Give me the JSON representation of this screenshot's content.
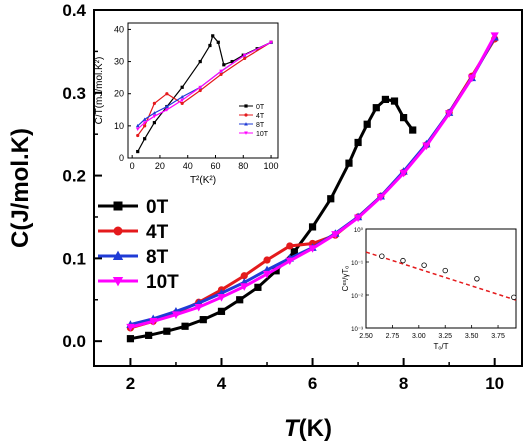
{
  "chart_data": [
    {
      "type": "line",
      "xlabel_main": "T",
      "xlabel_unit": "(K)",
      "ylabel": "C(J/mol.K)",
      "xlim": [
        1.2,
        10.6
      ],
      "ylim": [
        -0.03,
        0.4
      ],
      "xticks": [
        2,
        4,
        6,
        8,
        10
      ],
      "yticks": [
        0.0,
        0.1,
        0.2,
        0.3,
        0.4
      ],
      "ytick_labels": [
        "0.0",
        "0.1",
        "0.2",
        "0.3",
        "0.4"
      ],
      "legend_position": "middle-left",
      "series": [
        {
          "name": "0T",
          "color": "#000000",
          "marker": "square",
          "x": [
            2.0,
            2.4,
            2.8,
            3.2,
            3.6,
            4.0,
            4.4,
            4.8,
            5.2,
            5.6,
            6.0,
            6.4,
            6.8,
            7.0,
            7.2,
            7.4,
            7.6,
            7.8,
            8.0,
            8.2
          ],
          "y": [
            0.003,
            0.007,
            0.012,
            0.018,
            0.026,
            0.036,
            0.05,
            0.065,
            0.085,
            0.108,
            0.138,
            0.172,
            0.215,
            0.24,
            0.262,
            0.282,
            0.292,
            0.29,
            0.27,
            0.255
          ]
        },
        {
          "name": "4T",
          "color": "#e41a1c",
          "marker": "circle",
          "x": [
            2.0,
            2.5,
            3.0,
            3.5,
            4.0,
            4.5,
            5.0,
            5.5,
            6.0,
            6.5,
            7.0,
            7.5,
            8.0,
            8.5,
            9.0,
            9.5,
            10.0
          ],
          "y": [
            0.016,
            0.024,
            0.034,
            0.047,
            0.062,
            0.079,
            0.098,
            0.115,
            0.118,
            0.128,
            0.15,
            0.175,
            0.204,
            0.237,
            0.276,
            0.32,
            0.365
          ]
        },
        {
          "name": "8T",
          "color": "#1f3bd6",
          "marker": "triangle-up",
          "x": [
            2.0,
            2.5,
            3.0,
            3.5,
            4.0,
            4.5,
            5.0,
            5.5,
            6.0,
            6.5,
            7.0,
            7.5,
            8.0,
            8.5,
            9.0,
            9.5,
            10.0
          ],
          "y": [
            0.02,
            0.027,
            0.036,
            0.046,
            0.058,
            0.071,
            0.086,
            0.1,
            0.113,
            0.13,
            0.15,
            0.175,
            0.205,
            0.238,
            0.276,
            0.318,
            0.367
          ]
        },
        {
          "name": "10T",
          "color": "#ff00ff",
          "marker": "triangle-down",
          "x": [
            2.0,
            2.5,
            3.0,
            3.5,
            4.0,
            4.5,
            5.0,
            5.5,
            6.0,
            6.5,
            7.0,
            7.5,
            8.0,
            8.5,
            9.0,
            9.5,
            10.0
          ],
          "y": [
            0.017,
            0.024,
            0.032,
            0.041,
            0.053,
            0.066,
            0.081,
            0.097,
            0.112,
            0.129,
            0.149,
            0.174,
            0.203,
            0.236,
            0.275,
            0.318,
            0.369
          ]
        }
      ]
    },
    {
      "type": "line",
      "xlabel": "T²(K²)",
      "ylabel": "C/T(mJ/mol.K²)",
      "xlim": [
        -3,
        105
      ],
      "ylim": [
        0,
        42
      ],
      "xticks": [
        0,
        20,
        40,
        60,
        80,
        100
      ],
      "yticks": [
        0,
        10,
        20,
        30,
        40
      ],
      "legend_position": "right",
      "series": [
        {
          "name": "0T",
          "color": "#000000",
          "marker": "square",
          "x": [
            4,
            9,
            16,
            25,
            36,
            49,
            56,
            58,
            62,
            66,
            72,
            80,
            90,
            100
          ],
          "y": [
            2,
            6,
            11,
            16,
            22,
            30,
            35,
            38,
            36,
            29,
            30,
            32,
            34,
            36
          ]
        },
        {
          "name": "4T",
          "color": "#e41a1c",
          "marker": "circle",
          "x": [
            4,
            9,
            16,
            25,
            36,
            49,
            64,
            81,
            100
          ],
          "y": [
            7,
            10,
            17,
            20,
            17,
            21,
            26,
            31,
            36
          ]
        },
        {
          "name": "8T",
          "color": "#1f3bd6",
          "marker": "triangle-up",
          "x": [
            4,
            9,
            16,
            25,
            36,
            49,
            64,
            81,
            100
          ],
          "y": [
            10,
            12,
            14,
            16,
            19,
            22,
            27,
            32,
            36
          ]
        },
        {
          "name": "10T",
          "color": "#ff00ff",
          "marker": "triangle-down",
          "x": [
            4,
            9,
            16,
            25,
            36,
            49,
            64,
            81,
            100
          ],
          "y": [
            9,
            11,
            13,
            15,
            18,
            22,
            27,
            32,
            36
          ]
        }
      ]
    },
    {
      "type": "scatter",
      "xlabel": "Tₒ/T",
      "ylabel": "Cᵉˢ/γTₒ",
      "xlim": [
        2.5,
        3.92
      ],
      "log_y": true,
      "ylim": [
        0.001,
        1
      ],
      "xticks": [
        2.5,
        2.75,
        3.0,
        3.25,
        3.5,
        3.75
      ],
      "xtick_labels": [
        "2.50",
        "2.75",
        "3.00",
        "3.25",
        "3.50",
        "3.75"
      ],
      "yticks": [
        0.001,
        0.01,
        0.1,
        1
      ],
      "ytick_labels": [
        "10⁻³",
        "10⁻²",
        "10⁻¹",
        "10⁰"
      ],
      "points": {
        "x": [
          2.65,
          2.85,
          3.05,
          3.25,
          3.55,
          3.9
        ],
        "y": [
          0.15,
          0.11,
          0.08,
          0.055,
          0.031,
          0.0085
        ]
      },
      "fit": {
        "x": [
          2.5,
          3.92
        ],
        "y": [
          0.2,
          0.007
        ]
      }
    }
  ]
}
